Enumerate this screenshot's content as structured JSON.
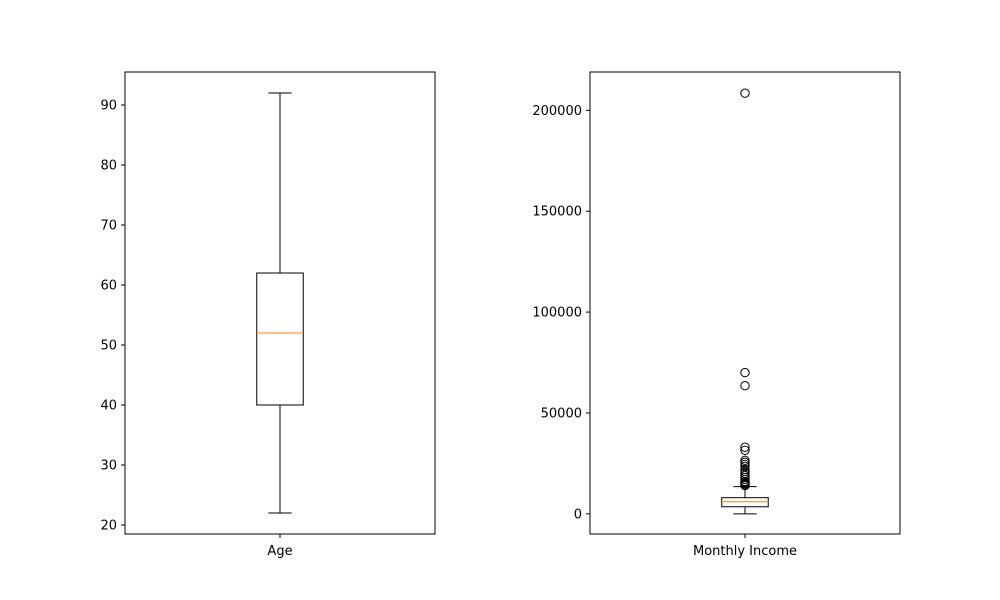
{
  "chart_data": [
    {
      "type": "box",
      "title": "",
      "xlabel": "",
      "ylabel": "",
      "categories": [
        "Age"
      ],
      "ylim": [
        18.5,
        95.5
      ],
      "yticks": [
        20,
        30,
        40,
        50,
        60,
        70,
        80,
        90
      ],
      "yticklabels": [
        "20",
        "30",
        "40",
        "50",
        "60",
        "70",
        "80",
        "90"
      ],
      "grid": false,
      "box": {
        "whisker_low": 22,
        "q1": 40,
        "median": 52,
        "q3": 62,
        "whisker_high": 92,
        "outliers": []
      },
      "colors": {
        "box": "#000000",
        "median": "#ff7f0e",
        "outlier": "#000000"
      }
    },
    {
      "type": "box",
      "title": "",
      "xlabel": "",
      "ylabel": "",
      "categories": [
        "Monthly Income"
      ],
      "ylim": [
        -10000,
        219000
      ],
      "yticks": [
        0,
        50000,
        100000,
        150000,
        200000
      ],
      "yticklabels": [
        "0",
        "50000",
        "100000",
        "150000",
        "200000"
      ],
      "grid": false,
      "box": {
        "whisker_low": 0,
        "q1": 3500,
        "median": 6000,
        "q3": 8000,
        "whisker_high": 13500,
        "outliers": [
          14000,
          14500,
          15000,
          15500,
          16000,
          17000,
          18000,
          19000,
          20000,
          21000,
          22000,
          23500,
          24500,
          25500,
          26500,
          31500,
          33000,
          63500,
          70000,
          208500
        ]
      },
      "colors": {
        "box": "#000000",
        "median": "#ff7f0e",
        "outlier": "#000000"
      }
    }
  ]
}
